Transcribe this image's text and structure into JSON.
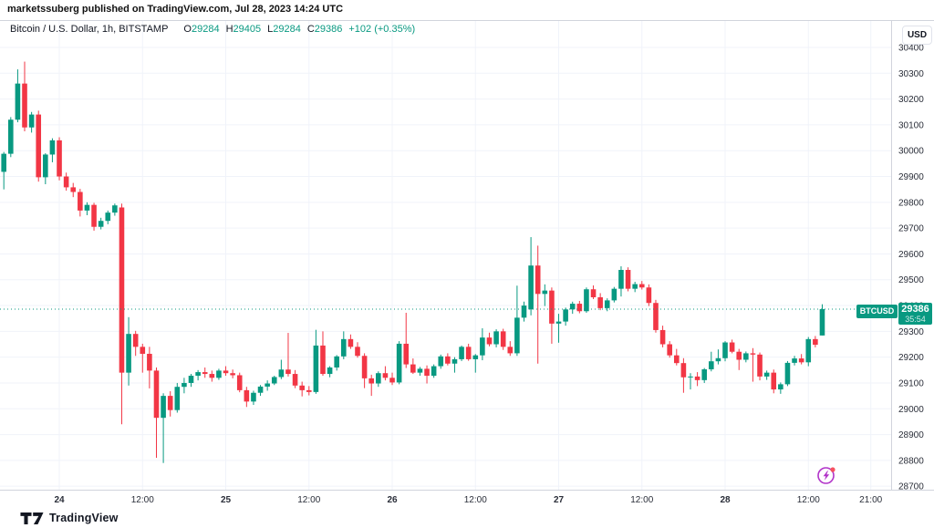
{
  "header": {
    "publish_line": "marketssuberg published on TradingView.com, Jul 28, 2023 14:24 UTC"
  },
  "legend": {
    "symbol_title": "Bitcoin / U.S. Dollar, 1h, BITSTAMP",
    "o_label": "O",
    "o": "29284",
    "h_label": "H",
    "h": "29405",
    "l_label": "L",
    "l": "29284",
    "c_label": "C",
    "c": "29386",
    "change": "+102 (+0.35%)"
  },
  "toolbar": {
    "currency_button": "USD"
  },
  "price_line": {
    "symbol_tag": "BTCUSD",
    "price": "29386",
    "countdown": "35:54",
    "value": 29386
  },
  "price_axis": {
    "ticks": [
      30400,
      30300,
      30200,
      30100,
      30000,
      29900,
      29800,
      29700,
      29600,
      29500,
      29400,
      29300,
      29200,
      29100,
      29000,
      28900,
      28800,
      28700
    ]
  },
  "time_axis": {
    "ticks": [
      {
        "label": "24",
        "hour": 0,
        "day": true
      },
      {
        "label": "12:00",
        "hour": 12,
        "day": false
      },
      {
        "label": "25",
        "hour": 24,
        "day": true
      },
      {
        "label": "12:00",
        "hour": 36,
        "day": false
      },
      {
        "label": "26",
        "hour": 48,
        "day": true
      },
      {
        "label": "12:00",
        "hour": 60,
        "day": false
      },
      {
        "label": "27",
        "hour": 72,
        "day": true
      },
      {
        "label": "12:00",
        "hour": 84,
        "day": false
      },
      {
        "label": "28",
        "hour": 96,
        "day": true
      },
      {
        "label": "12:00",
        "hour": 108,
        "day": false
      },
      {
        "label": "21:00",
        "hour": 117,
        "day": false
      }
    ]
  },
  "footer": {
    "brand": "TradingView"
  },
  "colors": {
    "up": "#089981",
    "down": "#f23645",
    "grid": "#f0f3fa",
    "border": "#d1d4dc",
    "axis_text": "#2a2e39",
    "price_line": "#089981",
    "label_bg": "#089981",
    "icon_purple": "#b133c9",
    "icon_dot": "#f7525f",
    "brand_text": "#131722"
  },
  "chart_data": {
    "type": "candlestick",
    "title": "Bitcoin / U.S. Dollar",
    "exchange": "BITSTAMP",
    "interval": "1h",
    "unit": "USD",
    "start_time": "Jul 23 2023 16:00 UTC",
    "step_hours": 1,
    "ylim": [
      28650,
      30450
    ],
    "y_gridline_step": 100,
    "grid": true,
    "last_price": 29386,
    "columns": [
      "open",
      "high",
      "low",
      "close"
    ],
    "candles": [
      [
        29918,
        29995,
        29850,
        29988
      ],
      [
        29988,
        30130,
        29975,
        30120
      ],
      [
        30120,
        30315,
        30110,
        30260
      ],
      [
        30260,
        30345,
        30075,
        30090
      ],
      [
        30090,
        30150,
        30070,
        30140
      ],
      [
        30140,
        30155,
        29880,
        29897
      ],
      [
        29897,
        29990,
        29870,
        29985
      ],
      [
        29985,
        30048,
        29955,
        30040
      ],
      [
        30040,
        30052,
        29885,
        29900
      ],
      [
        29900,
        29915,
        29845,
        29858
      ],
      [
        29858,
        29875,
        29820,
        29840
      ],
      [
        29840,
        29852,
        29745,
        29768
      ],
      [
        29768,
        29800,
        29750,
        29790
      ],
      [
        29790,
        29798,
        29690,
        29705
      ],
      [
        29705,
        29740,
        29695,
        29728
      ],
      [
        29728,
        29768,
        29715,
        29760
      ],
      [
        29760,
        29795,
        29748,
        29788
      ],
      [
        29780,
        29795,
        28940,
        29140
      ],
      [
        29140,
        29355,
        29090,
        29290
      ],
      [
        29290,
        29302,
        29205,
        29240
      ],
      [
        29240,
        29252,
        29140,
        29213
      ],
      [
        29213,
        29240,
        29079,
        29148
      ],
      [
        29148,
        29160,
        28810,
        28965
      ],
      [
        28965,
        29060,
        28790,
        29050
      ],
      [
        29050,
        29068,
        28970,
        28995
      ],
      [
        28995,
        29100,
        28985,
        29085
      ],
      [
        29085,
        29120,
        29060,
        29100
      ],
      [
        29100,
        29135,
        29085,
        29128
      ],
      [
        29128,
        29150,
        29110,
        29142
      ],
      [
        29142,
        29160,
        29120,
        29135
      ],
      [
        29135,
        29148,
        29105,
        29120
      ],
      [
        29120,
        29155,
        29112,
        29148
      ],
      [
        29148,
        29165,
        29128,
        29138
      ],
      [
        29138,
        29152,
        29118,
        29130
      ],
      [
        29130,
        29140,
        29064,
        29072
      ],
      [
        29072,
        29085,
        29007,
        29028
      ],
      [
        29028,
        29070,
        29015,
        29062
      ],
      [
        29062,
        29092,
        29050,
        29086
      ],
      [
        29086,
        29110,
        29070,
        29098
      ],
      [
        29098,
        29128,
        29092,
        29123
      ],
      [
        29123,
        29190,
        29115,
        29152
      ],
      [
        29152,
        29294,
        29125,
        29135
      ],
      [
        29135,
        29150,
        29080,
        29090
      ],
      [
        29090,
        29105,
        29048,
        29072
      ],
      [
        29072,
        29088,
        29052,
        29065
      ],
      [
        29065,
        29306,
        29058,
        29245
      ],
      [
        29245,
        29300,
        29128,
        29135
      ],
      [
        29135,
        29165,
        29122,
        29160
      ],
      [
        29160,
        29208,
        29148,
        29203
      ],
      [
        29203,
        29300,
        29192,
        29270
      ],
      [
        29270,
        29288,
        29232,
        29240
      ],
      [
        29240,
        29258,
        29198,
        29205
      ],
      [
        29205,
        29215,
        29080,
        29118
      ],
      [
        29118,
        29132,
        29050,
        29098
      ],
      [
        29098,
        29145,
        29085,
        29138
      ],
      [
        29138,
        29165,
        29110,
        29120
      ],
      [
        29120,
        29140,
        29092,
        29102
      ],
      [
        29102,
        29262,
        29095,
        29252
      ],
      [
        29252,
        29372,
        29158,
        29172
      ],
      [
        29172,
        29195,
        29135,
        29140
      ],
      [
        29140,
        29162,
        29128,
        29155
      ],
      [
        29155,
        29168,
        29098,
        29128
      ],
      [
        29128,
        29172,
        29120,
        29165
      ],
      [
        29165,
        29210,
        29155,
        29203
      ],
      [
        29203,
        29215,
        29168,
        29175
      ],
      [
        29175,
        29200,
        29140,
        29192
      ],
      [
        29192,
        29245,
        29185,
        29240
      ],
      [
        29240,
        29252,
        29186,
        29192
      ],
      [
        29192,
        29212,
        29140,
        29207
      ],
      [
        29207,
        29312,
        29188,
        29276
      ],
      [
        29276,
        29295,
        29242,
        29250
      ],
      [
        29250,
        29308,
        29238,
        29300
      ],
      [
        29300,
        29310,
        29228,
        29240
      ],
      [
        29240,
        29262,
        29205,
        29215
      ],
      [
        29215,
        29477,
        29205,
        29353
      ],
      [
        29353,
        29415,
        29338,
        29400
      ],
      [
        29385,
        29665,
        29362,
        29555
      ],
      [
        29555,
        29632,
        29175,
        29445
      ],
      [
        29445,
        29482,
        29398,
        29458
      ],
      [
        29458,
        29470,
        29252,
        29330
      ],
      [
        29330,
        29368,
        29256,
        29338
      ],
      [
        29338,
        29392,
        29322,
        29385
      ],
      [
        29385,
        29415,
        29368,
        29407
      ],
      [
        29407,
        29418,
        29370,
        29378
      ],
      [
        29378,
        29470,
        29372,
        29463
      ],
      [
        29463,
        29478,
        29425,
        29432
      ],
      [
        29432,
        29448,
        29382,
        29390
      ],
      [
        29390,
        29428,
        29378,
        29420
      ],
      [
        29420,
        29472,
        29412,
        29465
      ],
      [
        29465,
        29552,
        29435,
        29538
      ],
      [
        29538,
        29548,
        29455,
        29465
      ],
      [
        29465,
        29492,
        29452,
        29483
      ],
      [
        29483,
        29495,
        29462,
        29470
      ],
      [
        29470,
        29482,
        29398,
        29410
      ],
      [
        29410,
        29422,
        29295,
        29305
      ],
      [
        29305,
        29322,
        29238,
        29250
      ],
      [
        29250,
        29262,
        29198,
        29207
      ],
      [
        29207,
        29232,
        29168,
        29177
      ],
      [
        29177,
        29196,
        29062,
        29122
      ],
      [
        29122,
        29138,
        29075,
        29125
      ],
      [
        29125,
        29142,
        29088,
        29111
      ],
      [
        29111,
        29158,
        29100,
        29153
      ],
      [
        29153,
        29221,
        29145,
        29184
      ],
      [
        29184,
        29230,
        29172,
        29196
      ],
      [
        29196,
        29262,
        29184,
        29257
      ],
      [
        29257,
        29268,
        29215,
        29221
      ],
      [
        29221,
        29232,
        29150,
        29190
      ],
      [
        29190,
        29222,
        29180,
        29215
      ],
      [
        29215,
        29235,
        29105,
        29210
      ],
      [
        29210,
        29218,
        29110,
        29125
      ],
      [
        29125,
        29148,
        29112,
        29140
      ],
      [
        29140,
        29152,
        29060,
        29075
      ],
      [
        29075,
        29102,
        29058,
        29095
      ],
      [
        29095,
        29185,
        29088,
        29178
      ],
      [
        29178,
        29205,
        29168,
        29195
      ],
      [
        29195,
        29212,
        29172,
        29180
      ],
      [
        29180,
        29278,
        29165,
        29270
      ],
      [
        29270,
        29282,
        29238,
        29248
      ],
      [
        29284,
        29405,
        29284,
        29386
      ]
    ]
  }
}
